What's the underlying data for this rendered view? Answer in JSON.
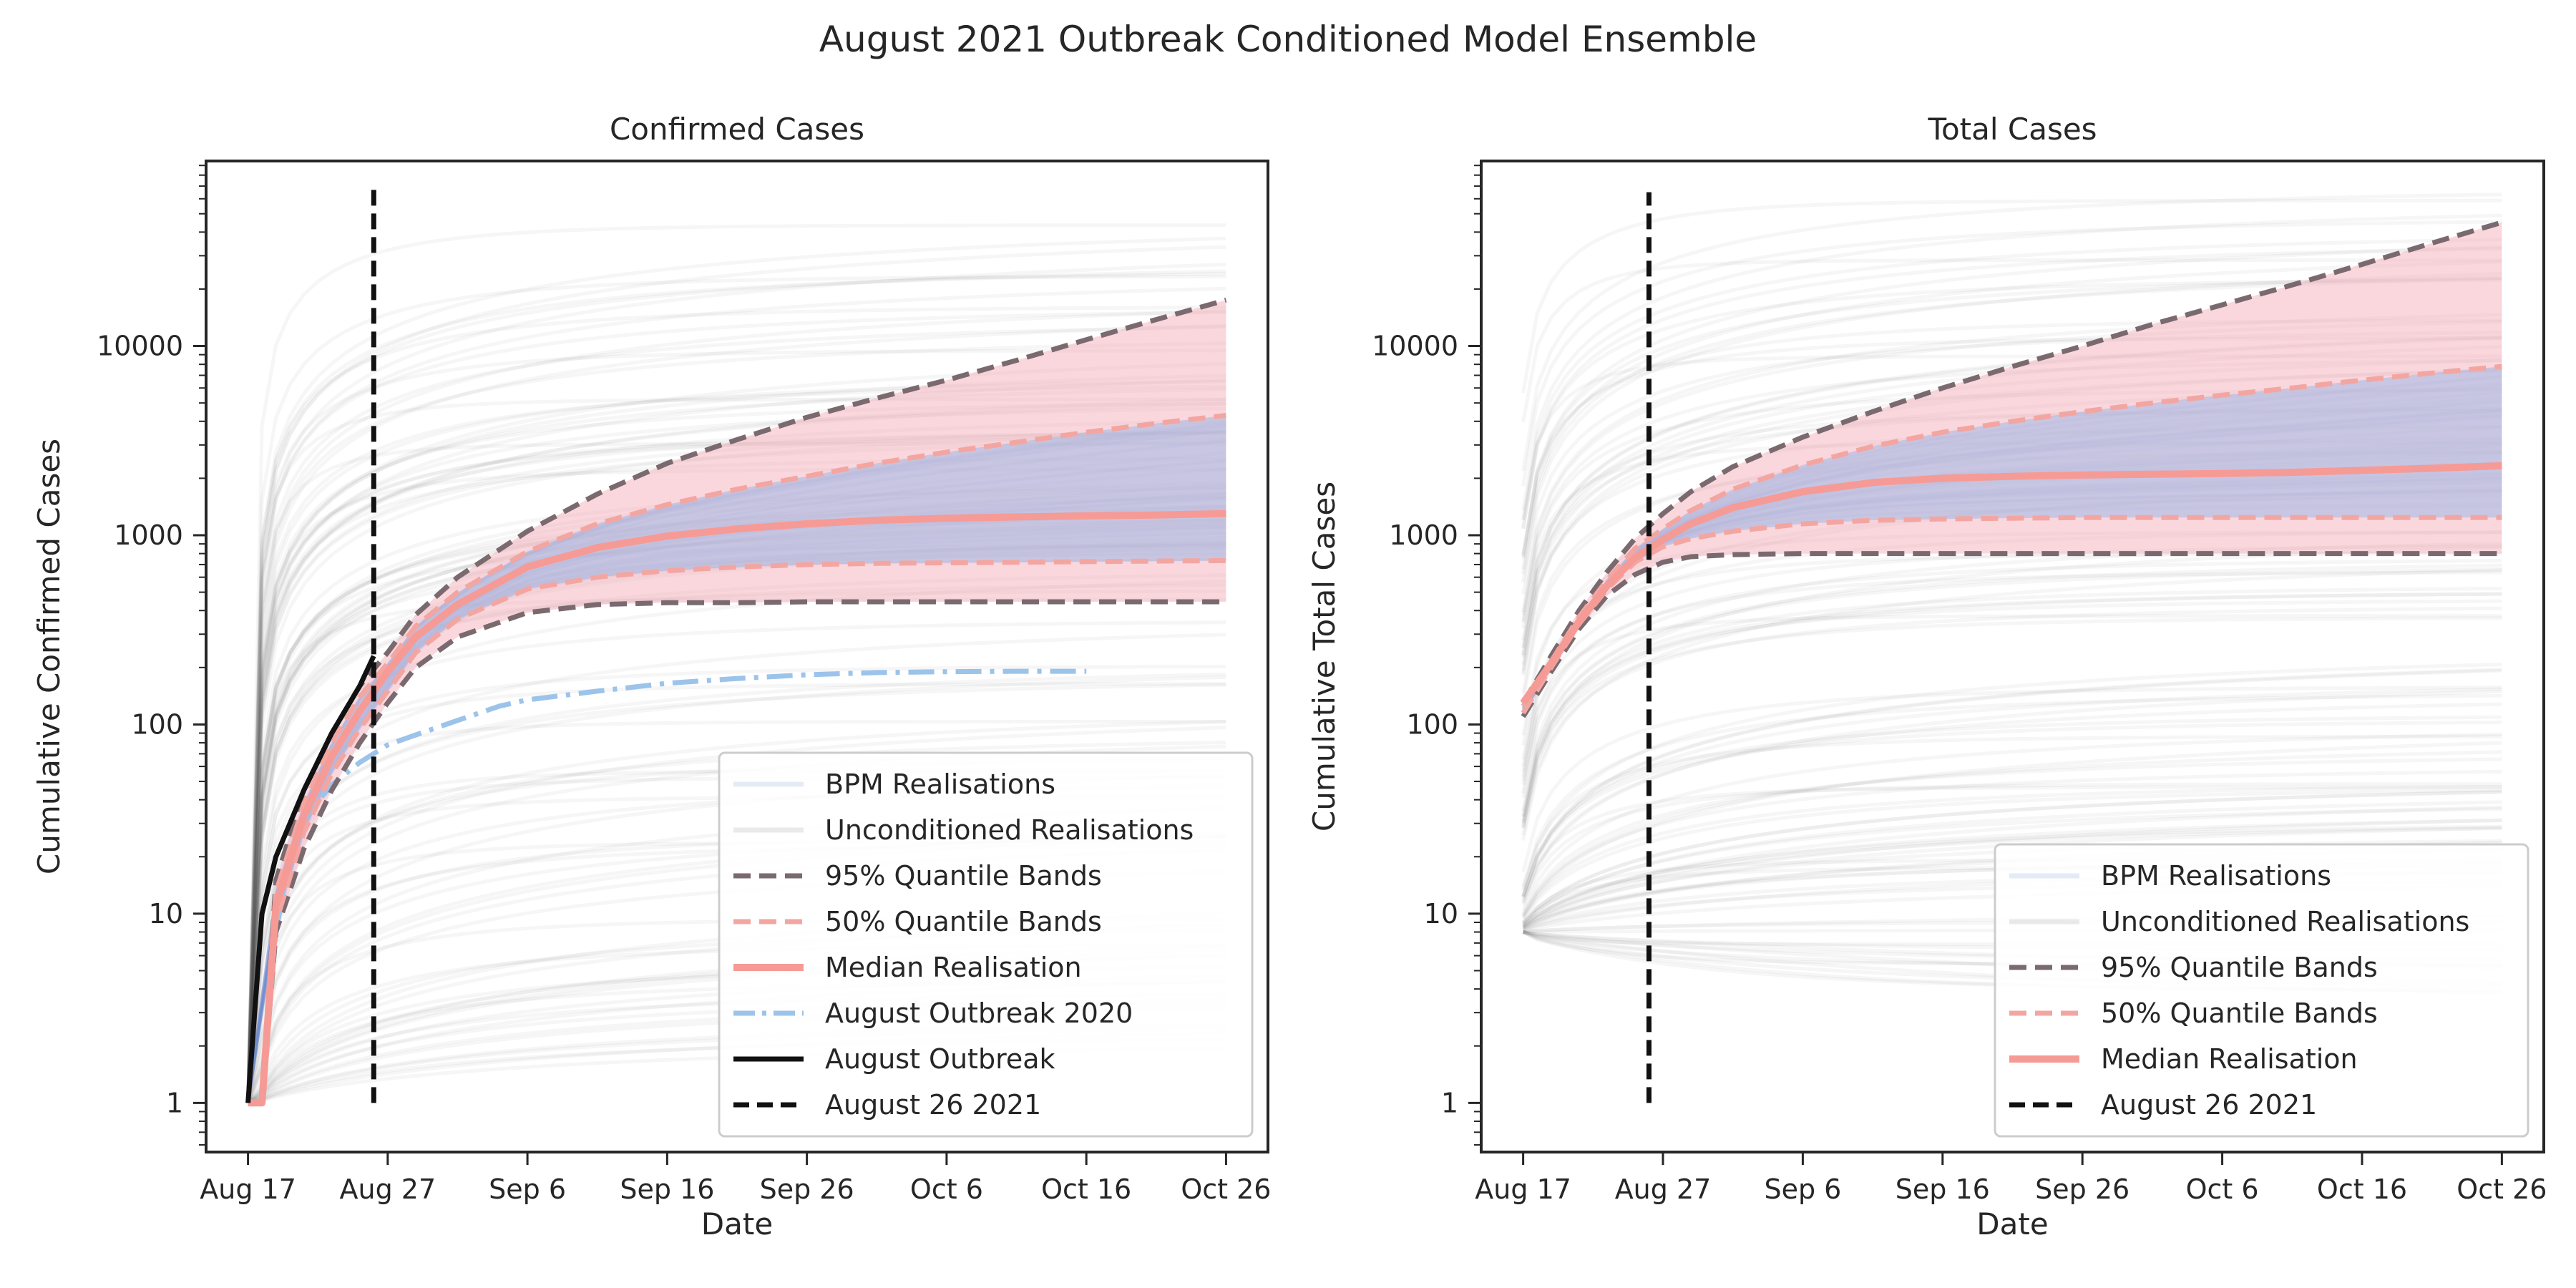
{
  "figure": {
    "title": "August 2021 Outbreak Conditioned Model Ensemble"
  },
  "colors": {
    "background": "#ffffff",
    "axis": "#262626",
    "ensemble_gray": "#555555",
    "bpm_blue": "#6f8fce",
    "band95_fill": "#f4a7b3",
    "band50_fill": "#9fb8e6",
    "band95_line": "#7a6a6f",
    "band50_line": "#f3a6a1",
    "median": "#f69a96",
    "outbreak2020": "#9cc3ea",
    "outbreak": "#111111",
    "vline": "#111111"
  },
  "chart_data": [
    {
      "type": "line",
      "title": "Confirmed Cases",
      "xlabel": "Date",
      "ylabel": "Cumulative Confirmed Cases",
      "yscale": "log",
      "xlim": [
        -3,
        73
      ],
      "ylim": [
        0.55,
        95000
      ],
      "x_ticks": [
        {
          "x": 0,
          "label": "Aug 17"
        },
        {
          "x": 10,
          "label": "Aug 27"
        },
        {
          "x": 20,
          "label": "Sep 6"
        },
        {
          "x": 30,
          "label": "Sep 16"
        },
        {
          "x": 40,
          "label": "Sep 26"
        },
        {
          "x": 50,
          "label": "Oct 6"
        },
        {
          "x": 60,
          "label": "Oct 16"
        },
        {
          "x": 70,
          "label": "Oct 26"
        }
      ],
      "y_ticks": [
        {
          "y": 1,
          "label": "1"
        },
        {
          "y": 10,
          "label": "10"
        },
        {
          "y": 100,
          "label": "100"
        },
        {
          "y": 1000,
          "label": "1000"
        },
        {
          "y": 10000,
          "label": "10000"
        }
      ],
      "ensemble": {
        "start": 1,
        "jump_day": 1,
        "ymin": 2,
        "ymax": 45000,
        "count": 110
      },
      "series": [
        {
          "name": "95% Quantile Bands",
          "role": "q95_upper",
          "x": [
            0,
            1,
            2,
            4,
            6,
            8,
            10,
            12,
            15,
            20,
            25,
            30,
            35,
            40,
            45,
            50,
            55,
            60,
            65,
            70
          ],
          "values": [
            1,
            1,
            15,
            45,
            90,
            160,
            240,
            380,
            600,
            1050,
            1650,
            2400,
            3200,
            4200,
            5300,
            6600,
            8400,
            10800,
            13800,
            17500
          ]
        },
        {
          "name": "",
          "role": "q95_lower",
          "x": [
            0,
            1,
            2,
            4,
            6,
            8,
            10,
            12,
            15,
            20,
            25,
            30,
            35,
            40,
            45,
            50,
            55,
            60,
            65,
            70
          ],
          "values": [
            1,
            1,
            8,
            22,
            45,
            80,
            130,
            200,
            290,
            390,
            430,
            440,
            440,
            445,
            445,
            445,
            445,
            445,
            445,
            445
          ]
        },
        {
          "name": "50% Quantile Bands",
          "role": "q50_upper",
          "x": [
            0,
            1,
            2,
            4,
            6,
            8,
            10,
            12,
            15,
            20,
            25,
            30,
            35,
            40,
            45,
            50,
            55,
            60,
            65,
            70
          ],
          "values": [
            1,
            1,
            13,
            38,
            80,
            140,
            210,
            330,
            500,
            820,
            1150,
            1450,
            1750,
            2050,
            2400,
            2750,
            3100,
            3500,
            3900,
            4300
          ]
        },
        {
          "name": "",
          "role": "q50_lower",
          "x": [
            0,
            1,
            2,
            4,
            6,
            8,
            10,
            12,
            15,
            20,
            25,
            30,
            35,
            40,
            45,
            50,
            55,
            60,
            65,
            70
          ],
          "values": [
            1,
            1,
            9,
            27,
            55,
            95,
            150,
            240,
            360,
            520,
            600,
            650,
            680,
            700,
            710,
            715,
            720,
            725,
            730,
            735
          ]
        },
        {
          "name": "Median Realisation",
          "role": "median",
          "x": [
            0,
            1,
            2,
            4,
            6,
            8,
            10,
            12,
            15,
            20,
            25,
            30,
            35,
            40,
            45,
            50,
            55,
            60,
            65,
            70
          ],
          "values": [
            1,
            1,
            11,
            33,
            68,
            118,
            190,
            290,
            430,
            680,
            860,
            990,
            1080,
            1150,
            1200,
            1230,
            1250,
            1265,
            1280,
            1300
          ]
        },
        {
          "name": "August Outbreak 2020",
          "role": "outbreak2020",
          "x": [
            0,
            1,
            2,
            3,
            4,
            6,
            8,
            10,
            12,
            15,
            18,
            20,
            25,
            30,
            35,
            40,
            45,
            50,
            55,
            60
          ],
          "values": [
            1,
            1,
            8,
            20,
            32,
            48,
            63,
            78,
            88,
            105,
            125,
            135,
            150,
            165,
            175,
            183,
            188,
            190,
            191,
            191
          ]
        },
        {
          "name": "August Outbreak",
          "role": "outbreak",
          "x": [
            0,
            1,
            2,
            4,
            6,
            8,
            9
          ],
          "values": [
            1,
            10,
            20,
            45,
            90,
            160,
            230
          ]
        }
      ],
      "legend": {
        "placement": "lower-right",
        "entries": [
          {
            "label": "BPM Realisations",
            "style": "bpm"
          },
          {
            "label": "Unconditioned Realisations",
            "style": "uncond"
          },
          {
            "label": "95% Quantile Bands",
            "style": "q95"
          },
          {
            "label": "50% Quantile Bands",
            "style": "q50"
          },
          {
            "label": "Median Realisation",
            "style": "median"
          },
          {
            "label": "August Outbreak 2020",
            "style": "outbreak2020"
          },
          {
            "label": "August Outbreak",
            "style": "outbreak"
          },
          {
            "label": "August 26 2021",
            "style": "vline"
          }
        ]
      },
      "vline": {
        "x": 9,
        "y_from": 1,
        "y_to": 70000
      }
    },
    {
      "type": "line",
      "title": "Total Cases",
      "xlabel": "Date",
      "ylabel": "Cumulative Total Cases",
      "yscale": "log",
      "xlim": [
        -3,
        73
      ],
      "ylim": [
        0.55,
        95000
      ],
      "x_ticks": [
        {
          "x": 0,
          "label": "Aug 17"
        },
        {
          "x": 10,
          "label": "Aug 27"
        },
        {
          "x": 20,
          "label": "Sep 6"
        },
        {
          "x": 30,
          "label": "Sep 16"
        },
        {
          "x": 40,
          "label": "Sep 26"
        },
        {
          "x": 50,
          "label": "Oct 6"
        },
        {
          "x": 60,
          "label": "Oct 16"
        },
        {
          "x": 70,
          "label": "Oct 26"
        }
      ],
      "y_ticks": [
        {
          "y": 1,
          "label": "1"
        },
        {
          "y": 10,
          "label": "10"
        },
        {
          "y": 100,
          "label": "100"
        },
        {
          "y": 1000,
          "label": "1000"
        },
        {
          "y": 10000,
          "label": "10000"
        }
      ],
      "ensemble": {
        "start": 8,
        "jump_day": 0,
        "ymin": 3,
        "ymax": 80000,
        "count": 110
      },
      "series": [
        {
          "name": "95% Quantile Bands",
          "role": "q95_upper",
          "x": [
            0,
            2,
            4,
            6,
            8,
            10,
            12,
            15,
            20,
            25,
            30,
            35,
            40,
            45,
            50,
            55,
            60,
            65,
            70
          ],
          "values": [
            130,
            230,
            400,
            640,
            960,
            1300,
            1700,
            2300,
            3300,
            4500,
            6000,
            7800,
            10000,
            13000,
            16500,
            21000,
            27000,
            35000,
            45000
          ]
        },
        {
          "name": "",
          "role": "q95_lower",
          "x": [
            0,
            2,
            4,
            6,
            8,
            10,
            12,
            15,
            20,
            25,
            30,
            35,
            40,
            45,
            50,
            55,
            60,
            65,
            70
          ],
          "values": [
            110,
            190,
            320,
            480,
            620,
            720,
            770,
            790,
            800,
            800,
            800,
            800,
            800,
            800,
            800,
            800,
            800,
            800,
            800
          ]
        },
        {
          "name": "50% Quantile Bands",
          "role": "q50_upper",
          "x": [
            0,
            2,
            4,
            6,
            8,
            10,
            12,
            15,
            20,
            25,
            30,
            35,
            40,
            45,
            50,
            55,
            60,
            65,
            70
          ],
          "values": [
            125,
            215,
            370,
            580,
            850,
            1080,
            1350,
            1750,
            2350,
            2950,
            3500,
            4000,
            4500,
            5000,
            5500,
            6000,
            6600,
            7200,
            7800
          ]
        },
        {
          "name": "",
          "role": "q50_lower",
          "x": [
            0,
            2,
            4,
            6,
            8,
            10,
            12,
            15,
            20,
            25,
            30,
            35,
            40,
            45,
            50,
            55,
            60,
            65,
            70
          ],
          "values": [
            115,
            200,
            340,
            520,
            720,
            870,
            960,
            1050,
            1150,
            1200,
            1220,
            1230,
            1240,
            1240,
            1240,
            1240,
            1240,
            1240,
            1240
          ]
        },
        {
          "name": "Median Realisation",
          "role": "median",
          "x": [
            0,
            2,
            4,
            6,
            8,
            10,
            12,
            15,
            20,
            25,
            30,
            35,
            40,
            45,
            50,
            55,
            60,
            65,
            70
          ],
          "values": [
            130,
            210,
            350,
            540,
            760,
            950,
            1150,
            1400,
            1700,
            1900,
            2000,
            2050,
            2080,
            2100,
            2120,
            2150,
            2200,
            2260,
            2330
          ]
        }
      ],
      "legend": {
        "placement": "lower-right",
        "entries": [
          {
            "label": "BPM Realisations",
            "style": "bpm"
          },
          {
            "label": "Unconditioned Realisations",
            "style": "uncond"
          },
          {
            "label": "95% Quantile Bands",
            "style": "q95"
          },
          {
            "label": "50% Quantile Bands",
            "style": "q50"
          },
          {
            "label": "Median Realisation",
            "style": "median"
          },
          {
            "label": "August 26 2021",
            "style": "vline"
          }
        ]
      },
      "vline": {
        "x": 9,
        "y_from": 1,
        "y_to": 65000
      }
    }
  ]
}
